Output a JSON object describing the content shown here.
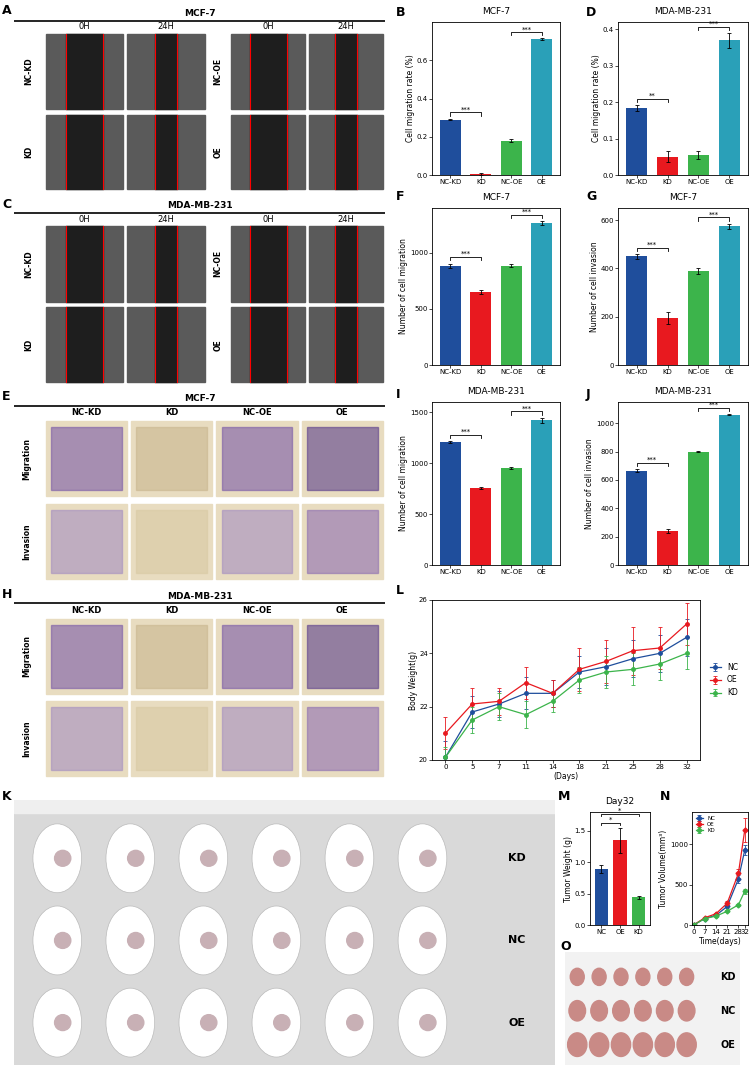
{
  "chart_data": [
    {
      "panel": "B",
      "type": "bar",
      "title": "MCF-7",
      "y_label": "Cell migration rate (%)",
      "categories": [
        "NC-KD",
        "KD",
        "NC-OE",
        "OE"
      ],
      "values": [
        0.29,
        0.005,
        0.18,
        0.71
      ],
      "errors": [
        0.005,
        0.003,
        0.01,
        0.004
      ],
      "colors": [
        "#1f4e9c",
        "#e8191f",
        "#3cb44b",
        "#2aa0b8"
      ],
      "ylim": [
        0,
        0.8
      ],
      "yticks": [
        0.0,
        0.2,
        0.4,
        0.6
      ],
      "significance": [
        {
          "pair": [
            0,
            1
          ],
          "label": "***"
        },
        {
          "pair": [
            2,
            3
          ],
          "label": "***"
        }
      ]
    },
    {
      "panel": "D",
      "type": "bar",
      "title": "MDA-MB-231",
      "y_label": "Cell migration rate (%)",
      "categories": [
        "NC-KD",
        "KD",
        "NC-OE",
        "OE"
      ],
      "values": [
        0.185,
        0.05,
        0.055,
        0.37
      ],
      "errors": [
        0.008,
        0.015,
        0.012,
        0.02
      ],
      "colors": [
        "#1f4e9c",
        "#e8191f",
        "#3cb44b",
        "#2aa0b8"
      ],
      "ylim": [
        0,
        0.42
      ],
      "yticks": [
        0.0,
        0.1,
        0.2,
        0.3,
        0.4
      ],
      "significance": [
        {
          "pair": [
            0,
            1
          ],
          "label": "**"
        },
        {
          "pair": [
            2,
            3
          ],
          "label": "***"
        }
      ]
    },
    {
      "panel": "F",
      "type": "bar",
      "title": "MCF-7",
      "y_label": "Number of cell migration",
      "categories": [
        "NC-KD",
        "KD",
        "NC-OE",
        "OE"
      ],
      "values": [
        885,
        650,
        885,
        1265
      ],
      "errors": [
        20,
        20,
        15,
        20
      ],
      "colors": [
        "#1f4e9c",
        "#e8191f",
        "#3cb44b",
        "#2aa0b8"
      ],
      "ylim": [
        0,
        1400
      ],
      "yticks": [
        0,
        500,
        1000
      ],
      "significance": [
        {
          "pair": [
            0,
            1
          ],
          "label": "***"
        },
        {
          "pair": [
            2,
            3
          ],
          "label": "***"
        }
      ]
    },
    {
      "panel": "G",
      "type": "bar",
      "title": "MCF-7",
      "y_label": "Number of cell invasion",
      "categories": [
        "NC-KD",
        "KD",
        "NC-OE",
        "OE"
      ],
      "values": [
        450,
        195,
        390,
        575
      ],
      "errors": [
        10,
        25,
        12,
        10
      ],
      "colors": [
        "#1f4e9c",
        "#e8191f",
        "#3cb44b",
        "#2aa0b8"
      ],
      "ylim": [
        0,
        650
      ],
      "yticks": [
        0,
        200,
        400,
        600
      ],
      "significance": [
        {
          "pair": [
            0,
            1
          ],
          "label": "***"
        },
        {
          "pair": [
            2,
            3
          ],
          "label": "***"
        }
      ]
    },
    {
      "panel": "I",
      "type": "bar",
      "title": "MDA-MB-231",
      "y_label": "Number of cell migration",
      "categories": [
        "NC-KD",
        "KD",
        "NC-OE",
        "OE"
      ],
      "values": [
        1205,
        760,
        950,
        1420
      ],
      "errors": [
        10,
        10,
        8,
        25
      ],
      "colors": [
        "#1f4e9c",
        "#e8191f",
        "#3cb44b",
        "#2aa0b8"
      ],
      "ylim": [
        0,
        1600
      ],
      "yticks": [
        0,
        500,
        1000,
        1500
      ],
      "significance": [
        {
          "pair": [
            0,
            1
          ],
          "label": "***"
        },
        {
          "pair": [
            2,
            3
          ],
          "label": "***"
        }
      ]
    },
    {
      "panel": "J",
      "type": "bar",
      "title": "MDA-MB-231",
      "y_label": "Number of cell invasion",
      "categories": [
        "NC-KD",
        "KD",
        "NC-OE",
        "OE"
      ],
      "values": [
        665,
        240,
        800,
        1060
      ],
      "errors": [
        10,
        15,
        5,
        5
      ],
      "colors": [
        "#1f4e9c",
        "#e8191f",
        "#3cb44b",
        "#2aa0b8"
      ],
      "ylim": [
        0,
        1150
      ],
      "yticks": [
        0,
        200,
        400,
        600,
        800,
        1000
      ],
      "significance": [
        {
          "pair": [
            0,
            1
          ],
          "label": "***"
        },
        {
          "pair": [
            2,
            3
          ],
          "label": "***"
        }
      ]
    },
    {
      "panel": "L",
      "type": "line",
      "y_label": "Body Weight(g)",
      "x_label": "(Days)",
      "categories": [
        "0",
        "5",
        "7",
        "11",
        "14",
        "18",
        "21",
        "25",
        "28",
        "32"
      ],
      "ylim": [
        20,
        26
      ],
      "yticks": [
        20,
        22,
        24,
        26
      ],
      "legend": "right",
      "marker": "circle",
      "line_style": "solid",
      "series": [
        {
          "name": "NC",
          "color": "#1f4e9c",
          "values": [
            20.1,
            21.8,
            22.1,
            22.5,
            22.5,
            23.3,
            23.5,
            23.8,
            24.0,
            24.6
          ],
          "errors": [
            0.6,
            0.6,
            0.5,
            0.6,
            0.5,
            0.6,
            0.7,
            0.7,
            0.7,
            0.7
          ]
        },
        {
          "name": "OE",
          "color": "#e8191f",
          "values": [
            21.0,
            22.1,
            22.2,
            22.9,
            22.5,
            23.4,
            23.7,
            24.1,
            24.2,
            25.1
          ],
          "errors": [
            0.6,
            0.6,
            0.5,
            0.6,
            0.5,
            0.8,
            0.8,
            0.9,
            0.8,
            0.8
          ]
        },
        {
          "name": "KD",
          "color": "#3cb44b",
          "values": [
            20.1,
            21.5,
            22.0,
            21.7,
            22.2,
            23.0,
            23.3,
            23.4,
            23.6,
            24.0
          ],
          "errors": [
            0.4,
            0.5,
            0.5,
            0.5,
            0.4,
            0.5,
            0.6,
            0.6,
            0.6,
            0.6
          ]
        }
      ]
    },
    {
      "panel": "M",
      "type": "bar",
      "title": "Day32",
      "y_label": "Tumor Weight (g)",
      "categories": [
        "NC",
        "OE",
        "KD"
      ],
      "values": [
        0.89,
        1.35,
        0.44
      ],
      "errors": [
        0.06,
        0.2,
        0.02
      ],
      "colors": [
        "#1f4e9c",
        "#e8191f",
        "#3cb44b"
      ],
      "ylim": [
        0,
        1.8
      ],
      "yticks": [
        0.0,
        0.5,
        1.0,
        1.5
      ],
      "significance": [
        {
          "pair": [
            0,
            1
          ],
          "label": "*"
        },
        {
          "pair": [
            0,
            2
          ],
          "label": "*"
        }
      ]
    },
    {
      "panel": "N",
      "type": "line",
      "y_label": "Tumor Volume(mm³)",
      "x_label": "Time(days)",
      "x": [
        0,
        7,
        14,
        21,
        28,
        32
      ],
      "xlim": [
        -1,
        34
      ],
      "xticks": [
        0,
        7,
        14,
        21,
        28,
        32
      ],
      "ylim": [
        0,
        1400
      ],
      "yticks": [
        0,
        500,
        1000
      ],
      "legend": "upper left",
      "marker": "diamond",
      "line_style": "solid",
      "series": [
        {
          "name": "NC",
          "color": "#1f4e9c",
          "values": [
            0,
            80,
            120,
            230,
            570,
            930
          ],
          "errors": [
            0,
            5,
            10,
            20,
            50,
            60
          ]
        },
        {
          "name": "OE",
          "color": "#e8191f",
          "values": [
            0,
            90,
            140,
            270,
            640,
            1180
          ],
          "errors": [
            0,
            5,
            10,
            30,
            60,
            150
          ]
        },
        {
          "name": "KD",
          "color": "#3cb44b",
          "values": [
            0,
            80,
            110,
            170,
            250,
            420
          ],
          "errors": [
            0,
            5,
            5,
            10,
            15,
            30
          ]
        }
      ]
    }
  ],
  "image_panels": [
    {
      "panel": "A",
      "type": "wound_healing_images",
      "title": "MCF-7",
      "column_labels": [
        "0H",
        "24H",
        "0H",
        "24H"
      ],
      "left_row_labels": [
        "NC-KD",
        "KD"
      ],
      "right_row_labels": [
        "NC-OE",
        "OE"
      ]
    },
    {
      "panel": "C",
      "type": "wound_healing_images",
      "title": "MDA-MB-231",
      "column_labels": [
        "0H",
        "24H",
        "0H",
        "24H"
      ],
      "left_row_labels": [
        "NC-KD",
        "KD"
      ],
      "right_row_labels": [
        "NC-OE",
        "OE"
      ]
    },
    {
      "panel": "E",
      "type": "transwell_images",
      "title": "MCF-7",
      "column_labels": [
        "NC-KD",
        "KD",
        "NC-OE",
        "OE"
      ],
      "row_labels": [
        "Migration",
        "Invasion"
      ]
    },
    {
      "panel": "H",
      "type": "transwell_images",
      "title": "MDA-MB-231",
      "column_labels": [
        "NC-KD",
        "KD",
        "NC-OE",
        "OE"
      ],
      "row_labels": [
        "Migration",
        "Invasion"
      ]
    },
    {
      "panel": "K",
      "type": "mouse_photo",
      "row_labels": [
        "KD",
        "NC",
        "OE"
      ]
    },
    {
      "panel": "O",
      "type": "tumor_photo",
      "row_labels": [
        "KD",
        "NC",
        "OE"
      ]
    }
  ]
}
